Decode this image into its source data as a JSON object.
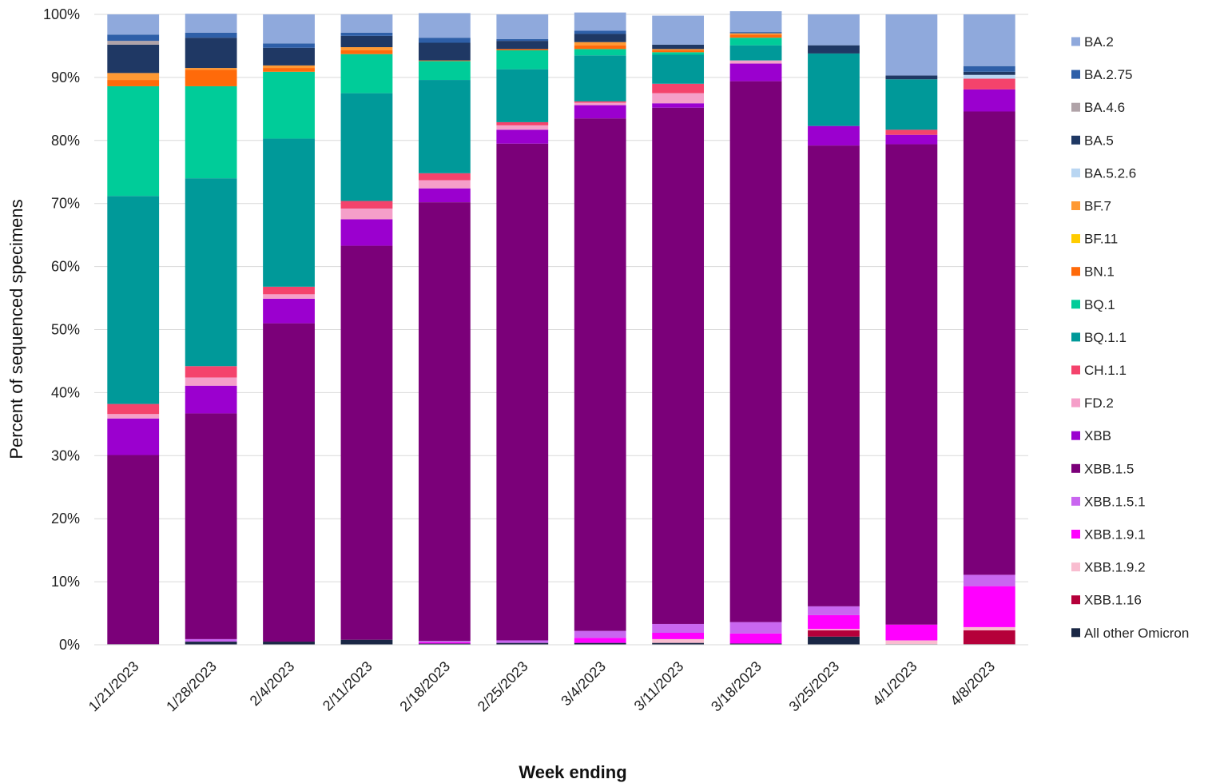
{
  "chart_data": {
    "type": "bar",
    "stacked": true,
    "title": "",
    "xlabel": "Week ending",
    "ylabel": "Percent of sequenced specimens",
    "ylim": [
      0,
      100
    ],
    "yticks": [
      "0%",
      "10%",
      "20%",
      "30%",
      "40%",
      "50%",
      "60%",
      "70%",
      "80%",
      "90%",
      "100%"
    ],
    "grid": true,
    "legend_position": "right",
    "categories": [
      "1/21/2023",
      "1/28/2023",
      "2/4/2023",
      "2/11/2023",
      "2/18/2023",
      "2/25/2023",
      "3/4/2023",
      "3/11/2023",
      "3/18/2023",
      "3/25/2023",
      "4/1/2023",
      "4/8/2023"
    ],
    "series": [
      {
        "name": "All other Omicron",
        "color": "#1a2745",
        "values": [
          0.1,
          0.5,
          0.5,
          0.8,
          0.2,
          0.3,
          0.3,
          0.3,
          0.2,
          1.3,
          0.1,
          0.1
        ]
      },
      {
        "name": "XBB.1.16",
        "color": "#b5003a",
        "values": [
          0,
          0,
          0,
          0,
          0,
          0,
          0,
          0,
          0,
          1.0,
          0,
          2.2
        ]
      },
      {
        "name": "XBB.1.9.2",
        "color": "#f9bdd0",
        "values": [
          0,
          0,
          0,
          0,
          0,
          0,
          0,
          0.6,
          0,
          0.2,
          0.6,
          0.5
        ]
      },
      {
        "name": "XBB.1.9.1",
        "color": "#ff00ff",
        "values": [
          0,
          0,
          0,
          0,
          0.2,
          0,
          0.8,
          1.0,
          1.6,
          2.2,
          2.5,
          6.5
        ]
      },
      {
        "name": "XBB.1.5.1",
        "color": "#c966f0",
        "values": [
          0,
          0.4,
          0,
          0,
          0.2,
          0.4,
          1.1,
          1.4,
          1.8,
          1.4,
          0,
          1.8
        ]
      },
      {
        "name": "XBB.1.5",
        "color": "#7b0079",
        "values": [
          30.0,
          35.8,
          50.5,
          62.5,
          69.6,
          78.8,
          81.3,
          81.9,
          85.8,
          73.1,
          76.2,
          73.5
        ]
      },
      {
        "name": "XBB",
        "color": "#9b00cf",
        "values": [
          5.8,
          4.4,
          3.9,
          4.2,
          2.2,
          2.2,
          2.1,
          0.7,
          2.8,
          3.1,
          1.5,
          3.5
        ]
      },
      {
        "name": "FD.2",
        "color": "#f59fc9",
        "values": [
          0.7,
          1.3,
          0.7,
          1.7,
          1.3,
          0.7,
          0.4,
          1.6,
          0.5,
          0,
          0,
          0
        ]
      },
      {
        "name": "CH.1.1",
        "color": "#f4436c",
        "values": [
          1.6,
          1.8,
          1.2,
          1.2,
          1.1,
          0.5,
          0.2,
          1.5,
          0,
          0,
          0.8,
          1.7
        ]
      },
      {
        "name": "BQ.1.1",
        "color": "#009999",
        "values": [
          33.0,
          29.8,
          23.5,
          17.1,
          14.8,
          8.4,
          7.3,
          4.6,
          2.4,
          11.5,
          8.0,
          0
        ]
      },
      {
        "name": "BQ.1",
        "color": "#00cc99",
        "values": [
          17.4,
          14.6,
          10.6,
          6.2,
          3.0,
          3.0,
          1.0,
          0.4,
          1.2,
          0,
          0,
          0
        ]
      },
      {
        "name": "BN.1",
        "color": "#ff6a0a",
        "values": [
          1.0,
          2.6,
          0.6,
          0.6,
          0.1,
          0.2,
          0.6,
          0.3,
          0.5,
          0,
          0,
          0
        ]
      },
      {
        "name": "BF.11",
        "color": "#ffcc00",
        "values": [
          0,
          0,
          0,
          0,
          0,
          0,
          0,
          0,
          0,
          0,
          0,
          0
        ]
      },
      {
        "name": "BF.7",
        "color": "#ff9933",
        "values": [
          1.1,
          0.3,
          0.4,
          0.5,
          0,
          0,
          0.5,
          0.2,
          0.2,
          0,
          0,
          0
        ]
      },
      {
        "name": "BA.5.2.6",
        "color": "#b9d6f2",
        "values": [
          0,
          0,
          0,
          0,
          0,
          0,
          0,
          0,
          0,
          0,
          0,
          0.6
        ]
      },
      {
        "name": "BA.5",
        "color": "#1f3864",
        "values": [
          4.5,
          4.8,
          2.8,
          1.8,
          2.8,
          1.3,
          1.3,
          0.7,
          0,
          1.3,
          0.6,
          0.5
        ]
      },
      {
        "name": "BA.4.6",
        "color": "#b0a3a8",
        "values": [
          0.6,
          0,
          0,
          0,
          0,
          0,
          0,
          0,
          0,
          0,
          0,
          0
        ]
      },
      {
        "name": "BA.2.75",
        "color": "#2e5fa8",
        "values": [
          1.0,
          0.8,
          0.7,
          0.5,
          0.8,
          0.3,
          0.5,
          0,
          0.2,
          0,
          0,
          0.9
        ]
      },
      {
        "name": "BA.2",
        "color": "#8fa9dc",
        "values": [
          3.2,
          3.0,
          4.6,
          2.9,
          3.9,
          3.9,
          2.9,
          4.6,
          3.3,
          4.9,
          9.7,
          8.2
        ]
      }
    ],
    "legend_order": [
      "BA.2",
      "BA.2.75",
      "BA.4.6",
      "BA.5",
      "BA.5.2.6",
      "BF.7",
      "BF.11",
      "BN.1",
      "BQ.1",
      "BQ.1.1",
      "CH.1.1",
      "FD.2",
      "XBB",
      "XBB.1.5",
      "XBB.1.5.1",
      "XBB.1.9.1",
      "XBB.1.9.2",
      "XBB.1.16",
      "All other Omicron"
    ]
  }
}
